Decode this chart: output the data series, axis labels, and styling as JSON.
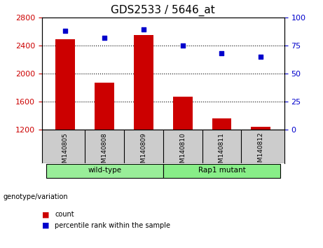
{
  "title": "GDS2533 / 5646_at",
  "samples": [
    "GSM140805",
    "GSM140808",
    "GSM140809",
    "GSM140810",
    "GSM140811",
    "GSM140812"
  ],
  "counts": [
    2490,
    1870,
    2550,
    1670,
    1360,
    1240
  ],
  "percentiles": [
    88,
    82,
    89,
    75,
    68,
    65
  ],
  "ylim_left": [
    1200,
    2800
  ],
  "ylim_right": [
    0,
    100
  ],
  "yticks_left": [
    1200,
    1600,
    2000,
    2400,
    2800
  ],
  "yticks_right": [
    0,
    25,
    50,
    75,
    100
  ],
  "bar_color": "#cc0000",
  "dot_color": "#0000cc",
  "bar_width": 0.5,
  "groups": [
    {
      "label": "wild-type",
      "indices": [
        0,
        1,
        2
      ],
      "color": "#99ee99"
    },
    {
      "label": "Rap1 mutant",
      "indices": [
        3,
        4,
        5
      ],
      "color": "#88ee88"
    }
  ],
  "group_label": "genotype/variation",
  "legend_count_label": "count",
  "legend_percentile_label": "percentile rank within the sample",
  "background_plot": "#ffffff",
  "title_fontsize": 11,
  "tick_fontsize": 8,
  "label_fontsize": 8
}
